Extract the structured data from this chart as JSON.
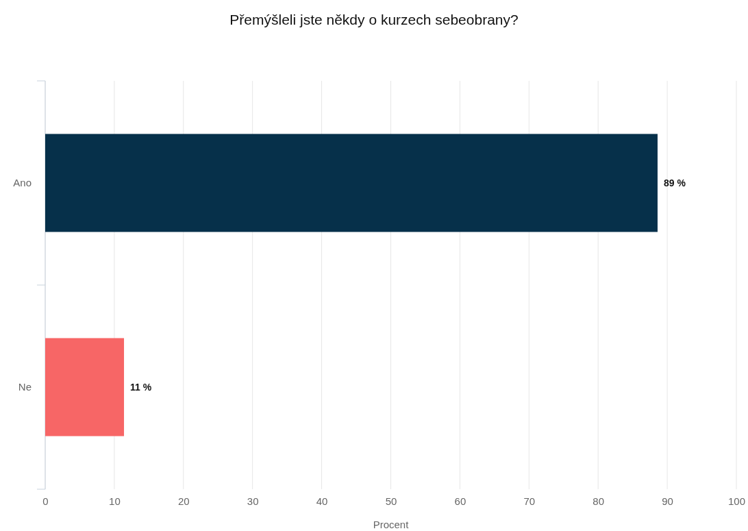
{
  "chart_data": {
    "type": "bar",
    "orientation": "horizontal",
    "title": "Přemýšleli jste někdy o kurzech sebeobrany?",
    "xlabel": "Procent",
    "categories": [
      "Ano",
      "Ne"
    ],
    "values": [
      88.6,
      11.4
    ],
    "colors": [
      "#06304a",
      "#f76666"
    ],
    "value_labels": [
      "89 %",
      "11 %"
    ],
    "xlim": [
      0,
      100
    ],
    "xticks": [
      0,
      10,
      20,
      30,
      40,
      50,
      60,
      70,
      80,
      90,
      100
    ],
    "grid": "x"
  }
}
